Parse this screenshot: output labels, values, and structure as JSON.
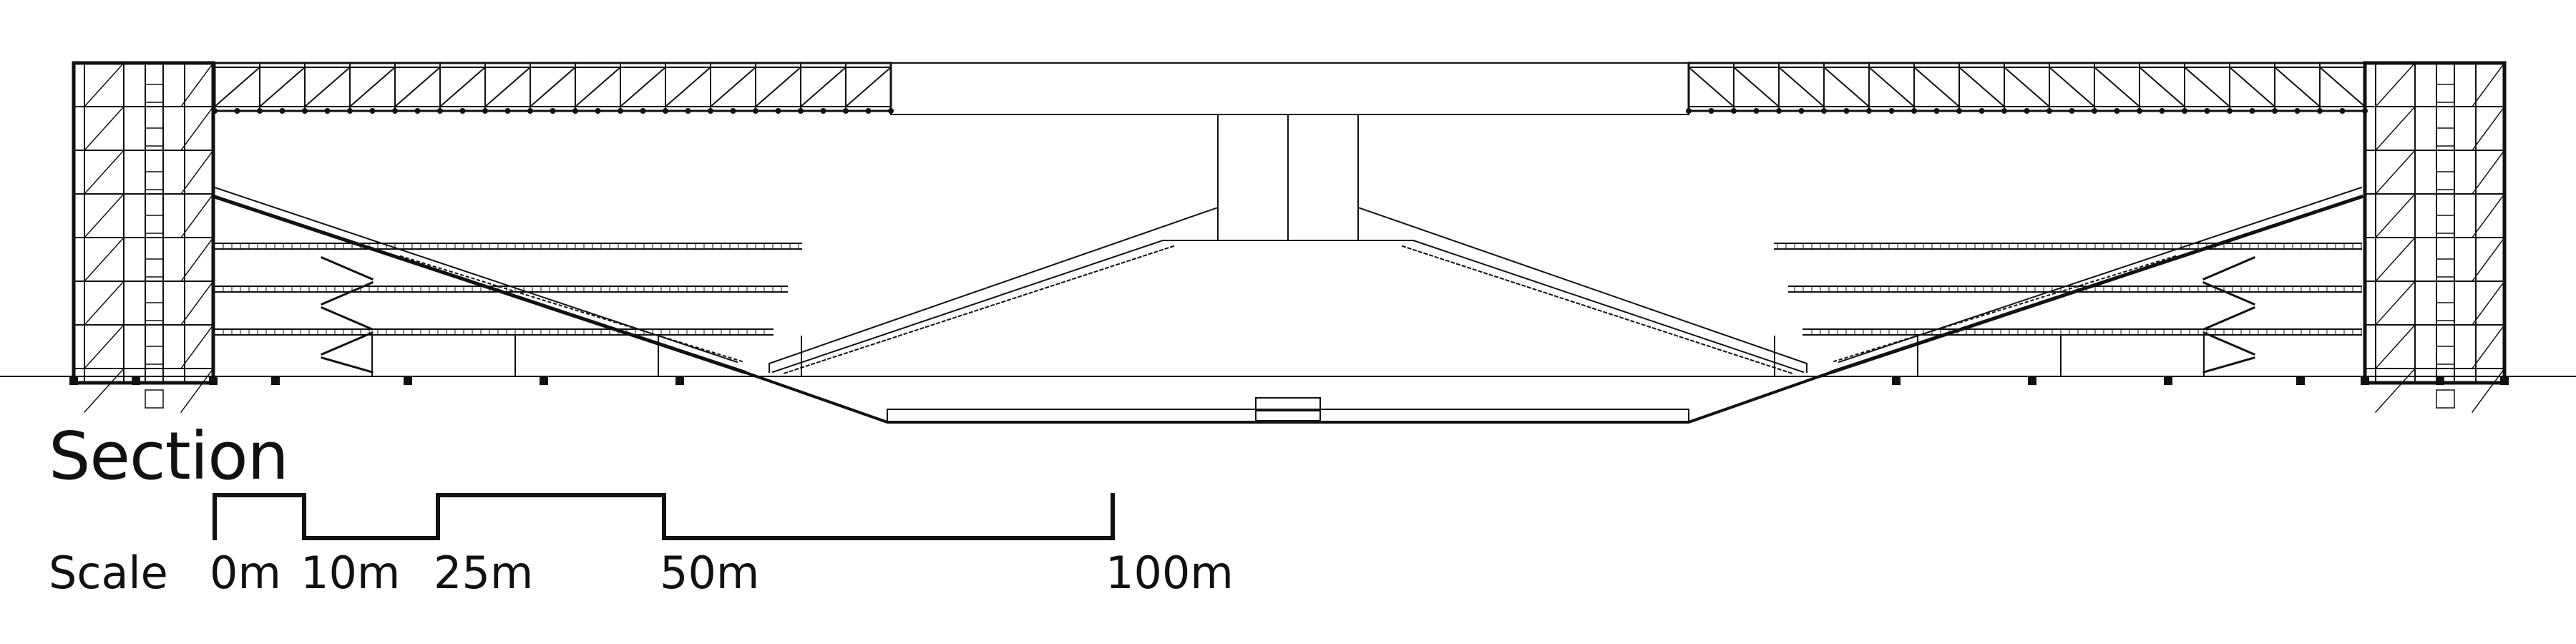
{
  "title": "Section",
  "scale": {
    "label": "Scale",
    "ticks": [
      "0m",
      "10m",
      "25m",
      "50m",
      "100m"
    ]
  }
}
